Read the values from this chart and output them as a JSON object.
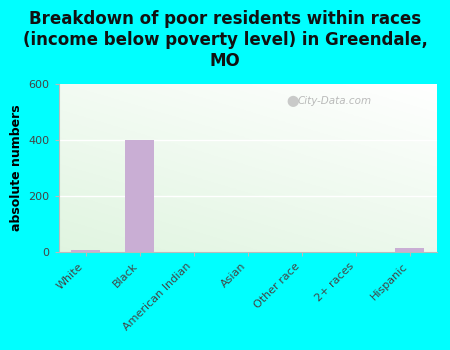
{
  "categories": [
    "White",
    "Black",
    "American Indian",
    "Asian",
    "Other race",
    "2+ races",
    "Hispanic"
  ],
  "values": [
    7,
    400,
    0,
    0,
    0,
    0,
    15
  ],
  "bar_color": "#c9aed4",
  "title": "Breakdown of poor residents within races\n(income below poverty level) in Greendale,\nMO",
  "ylabel": "absolute numbers",
  "ylim": [
    0,
    600
  ],
  "yticks": [
    0,
    200,
    400,
    600
  ],
  "background_color": "#00ffff",
  "title_fontsize": 12,
  "axis_label_fontsize": 9,
  "tick_fontsize": 8,
  "watermark": "City-Data.com"
}
